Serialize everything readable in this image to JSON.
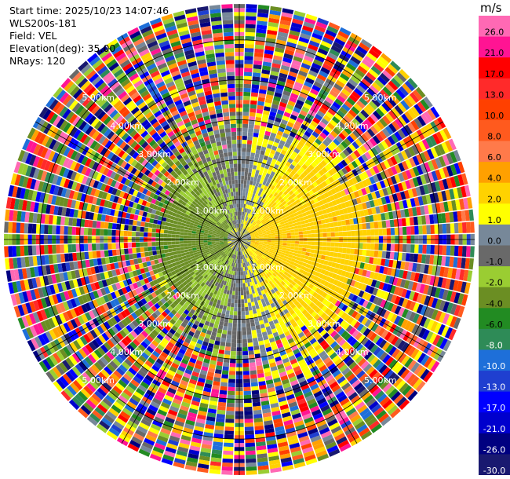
{
  "header": {
    "start_time": "Start time: 2025/10/23 14:07:46",
    "instrument": "WLS200s-181",
    "field": "Field: VEL",
    "elevation": "Elevation(deg): 35.00",
    "nrays": "NRays: 120"
  },
  "chart_data": {
    "type": "heatmap",
    "projection": "polar-ppi",
    "field": "VEL",
    "unit": "m/s",
    "n_rays": 120,
    "elevation_deg": 35.0,
    "range_rings_km": [
      1.0,
      2.0,
      3.0,
      4.0,
      5.0
    ],
    "ring_labels": [
      "1.00km",
      "2.00km",
      "3.00km",
      "4.00km",
      "5.00km"
    ],
    "spokes_deg": [
      0,
      30,
      60,
      90,
      120,
      150,
      180,
      210,
      240,
      270,
      300,
      330
    ],
    "grid": true,
    "colorbar": {
      "title": "m/s",
      "placement": "right",
      "ticks": [
        "26.0",
        "21.0",
        "17.0",
        "13.0",
        "10.0",
        "8.0",
        "6.0",
        "4.0",
        "2.0",
        "1.0",
        "0.0",
        "-1.0",
        "-2.0",
        "-4.0",
        "-6.0",
        "-8.0",
        "-10.0",
        "-13.0",
        "-17.0",
        "-21.0",
        "-26.0",
        "-30.0"
      ],
      "colors": [
        "#ff69b4",
        "#ff1493",
        "#ff0000",
        "#ff2a2a",
        "#ff4000",
        "#ff5a1e",
        "#ff7a4a",
        "#ffa000",
        "#ffd200",
        "#ffff00",
        "#778899",
        "#696969",
        "#9acd32",
        "#6b8e23",
        "#228b22",
        "#2e8b57",
        "#1e6fd9",
        "#1f3fd0",
        "#0000ff",
        "#0000cd",
        "#000080",
        "#191970"
      ]
    }
  }
}
